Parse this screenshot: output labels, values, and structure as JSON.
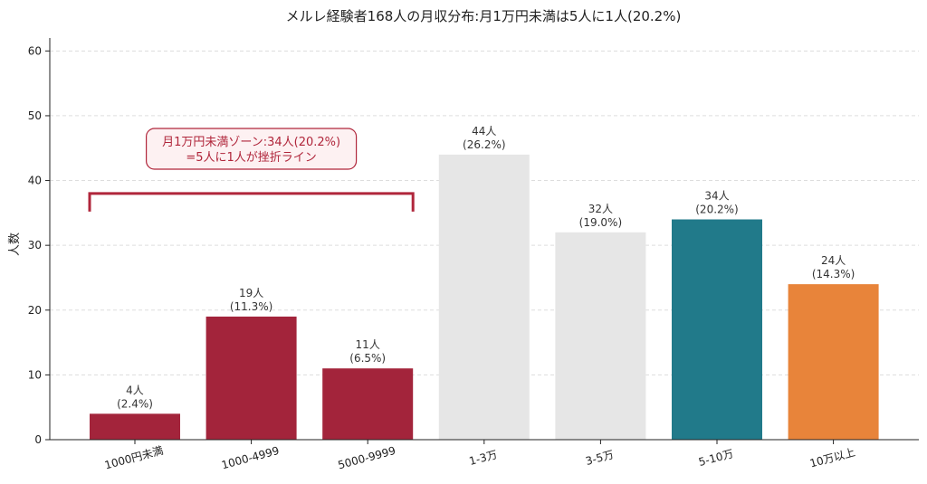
{
  "chart_data": {
    "type": "bar",
    "title": "メルレ経験者168人の月収分布:月1万円未満は5人に1人(20.2%)",
    "xlabel": "",
    "ylabel": "人数",
    "ylim": [
      0,
      62
    ],
    "yticks": [
      0,
      10,
      20,
      30,
      40,
      50,
      60
    ],
    "grid": "horizontal-dashed",
    "categories": [
      "1000円未満",
      "1000-4999",
      "5000-9999",
      "1-3万",
      "3-5万",
      "5-10万",
      "10万以上"
    ],
    "values": [
      4,
      19,
      11,
      44,
      32,
      34,
      24
    ],
    "labels": [
      [
        "4人",
        "(2.4%)"
      ],
      [
        "19人",
        "(11.3%)"
      ],
      [
        "11人",
        "(6.5%)"
      ],
      [
        "44人",
        "(26.2%)"
      ],
      [
        "32人",
        "(19.0%)"
      ],
      [
        "34人",
        "(20.2%)"
      ],
      [
        "24人",
        "(14.3%)"
      ]
    ],
    "colors": [
      "#a3243b",
      "#a3243b",
      "#a3243b",
      "#e6e6e6",
      "#e6e6e6",
      "#217a8a",
      "#e8843a"
    ],
    "annotation": {
      "lines": [
        "月1万円未満ゾーン:34人(20.2%)",
        "=5人に1人が挫折ライン"
      ],
      "span_categories": [
        0,
        2
      ],
      "bracket_y": 38,
      "color": "#b0263b"
    }
  }
}
